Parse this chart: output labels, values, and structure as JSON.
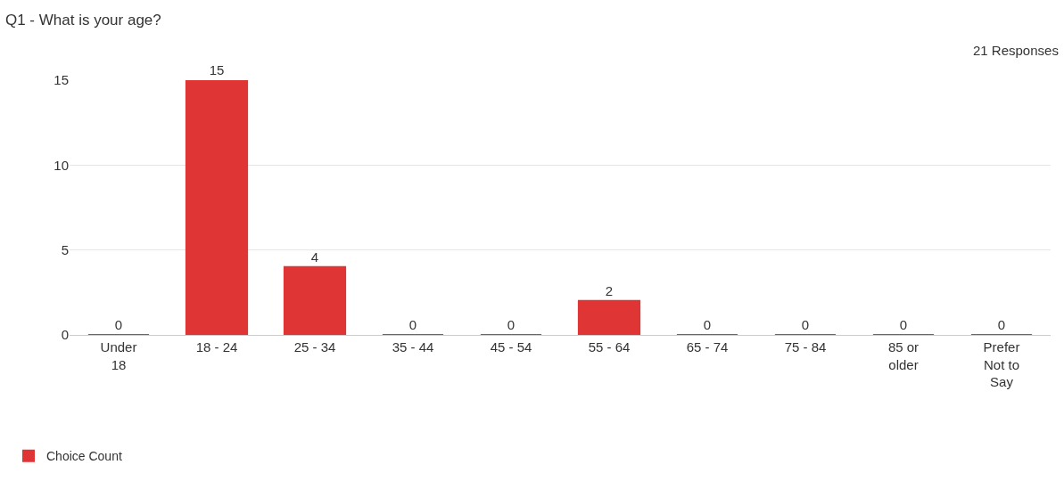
{
  "chart_data": {
    "type": "bar",
    "title": "Q1 - What is your age?",
    "annotations": [
      "21 Responses"
    ],
    "categories": [
      "Under 18",
      "18 - 24",
      "25 - 34",
      "35 - 44",
      "45 - 54",
      "55 - 64",
      "65 - 74",
      "75 - 84",
      "85 or older",
      "Prefer Not to Say"
    ],
    "series": [
      {
        "name": "Choice Count",
        "color": "#e03535",
        "values": [
          0,
          15,
          4,
          0,
          0,
          2,
          0,
          0,
          0,
          0
        ]
      }
    ],
    "ylim": [
      0,
      15
    ],
    "yticks": [
      0,
      5,
      10,
      15
    ],
    "grid": "y",
    "legend": "bottom left",
    "data_labels": true
  }
}
